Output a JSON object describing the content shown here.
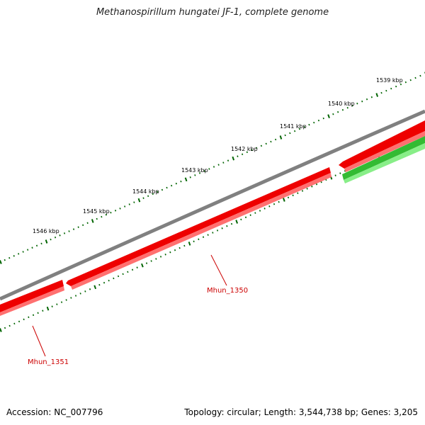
{
  "title": "Methanospirillum hungatei JF-1, complete genome",
  "footer": {
    "accession": "Accession: NC_007796",
    "summary": "Topology: circular; Length: 3,544,738 bp; Genes: 3,205"
  },
  "ruler": {
    "labels": [
      "1539 kbp",
      "1540 kbp",
      "1541 kbp",
      "1542 kbp",
      "1543 kbp",
      "1544 kbp",
      "1545 kbp",
      "1546 kbp"
    ],
    "tick_color": "#006400"
  },
  "genes": [
    {
      "label": "Mhun_1350",
      "color": "#ee0000"
    },
    {
      "label": "Mhun_1351",
      "color": "#ee0000"
    }
  ],
  "colors": {
    "backbone": "#808080",
    "reverse_strand_gene": "#ee0000",
    "forward_strand_gene": "#33bb33",
    "gene_label": "#cc0000"
  }
}
